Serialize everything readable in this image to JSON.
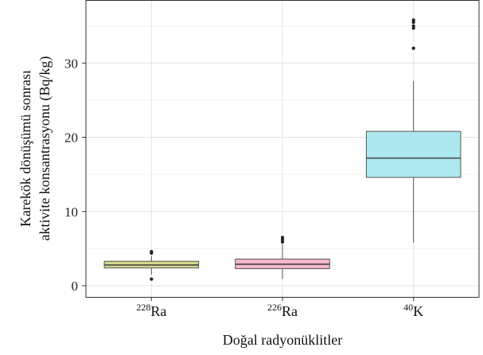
{
  "chart_data": {
    "type": "box",
    "xlabel": "Doğal radyonüklitler",
    "ylabel_lines": [
      "Karekök dönüşümü sonrası",
      "aktivite konsantrasyonu (Bq/kg)"
    ],
    "ylim": [
      -1.5,
      38.5
    ],
    "yticks": [
      0,
      10,
      20,
      30
    ],
    "grid": true,
    "categories": [
      {
        "label_sup": "228",
        "label_base": "Ra",
        "color": "#d6d98a"
      },
      {
        "label_sup": "226",
        "label_base": "Ra",
        "color": "#f4b6c8"
      },
      {
        "label_sup": "40",
        "label_base": "K",
        "color": "#ade8ee"
      }
    ],
    "boxes": [
      {
        "whisker_low": 1.5,
        "q1": 2.4,
        "median": 2.8,
        "q3": 3.3,
        "whisker_high": 4.0,
        "outliers": [
          0.9,
          4.4,
          4.6
        ]
      },
      {
        "whisker_low": 0.9,
        "q1": 2.3,
        "median": 2.9,
        "q3": 3.6,
        "whisker_high": 5.6,
        "outliers": [
          5.9,
          6.2,
          6.5
        ]
      },
      {
        "whisker_low": 5.8,
        "q1": 14.6,
        "median": 17.2,
        "q3": 20.8,
        "whisker_high": 27.6,
        "outliers": [
          32.0,
          34.7,
          35.0,
          35.5,
          35.8
        ]
      }
    ]
  }
}
